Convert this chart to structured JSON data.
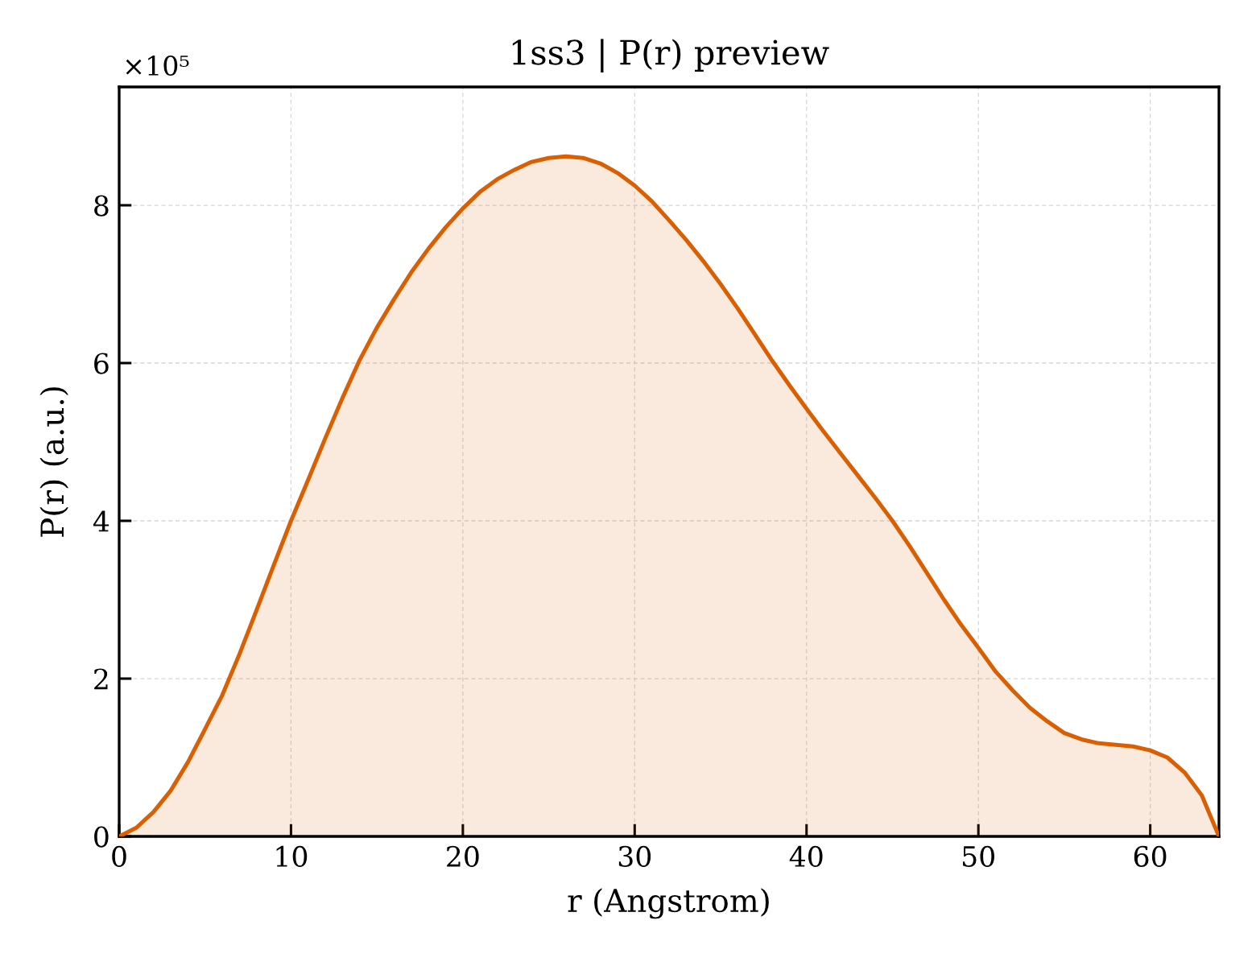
{
  "chart_data": {
    "type": "area",
    "title": "1ss3 | P(r) preview",
    "xlabel": "r (Angstrom)",
    "ylabel": "P(r) (a.u.)",
    "annotations": [
      "×10⁵"
    ],
    "x": [
      0,
      1,
      2,
      3,
      4,
      5,
      6,
      7,
      8,
      9,
      10,
      11,
      12,
      13,
      14,
      15,
      16,
      17,
      18,
      19,
      20,
      21,
      22,
      23,
      24,
      25,
      26,
      27,
      28,
      29,
      30,
      31,
      32,
      33,
      34,
      35,
      36,
      37,
      38,
      39,
      40,
      41,
      42,
      43,
      44,
      45,
      46,
      47,
      48,
      49,
      50,
      51,
      52,
      53,
      54,
      55,
      56,
      57,
      58,
      59,
      60,
      61,
      62,
      63,
      64
    ],
    "series": [
      {
        "color": "#d95f02",
        "values": [
          0,
          0.11,
          0.31,
          0.58,
          0.94,
          1.36,
          1.79,
          2.31,
          2.87,
          3.44,
          4.0,
          4.52,
          5.05,
          5.56,
          6.04,
          6.45,
          6.81,
          7.15,
          7.45,
          7.72,
          7.96,
          8.17,
          8.33,
          8.45,
          8.55,
          8.6,
          8.62,
          8.6,
          8.53,
          8.41,
          8.25,
          8.05,
          7.81,
          7.56,
          7.29,
          7.0,
          6.69,
          6.36,
          6.03,
          5.72,
          5.42,
          5.13,
          4.85,
          4.57,
          4.29,
          4.0,
          3.68,
          3.34,
          3.0,
          2.68,
          2.39,
          2.09,
          1.85,
          1.63,
          1.46,
          1.31,
          1.23,
          1.18,
          1.16,
          1.14,
          1.09,
          1.0,
          0.81,
          0.52,
          0
        ]
      }
    ],
    "xlim": [
      0,
      64
    ],
    "ylim": [
      0,
      9.5
    ],
    "xticks": [
      0,
      10,
      20,
      30,
      40,
      50,
      60
    ],
    "yticks": [
      0,
      2,
      4,
      6,
      8
    ],
    "grid": true
  }
}
